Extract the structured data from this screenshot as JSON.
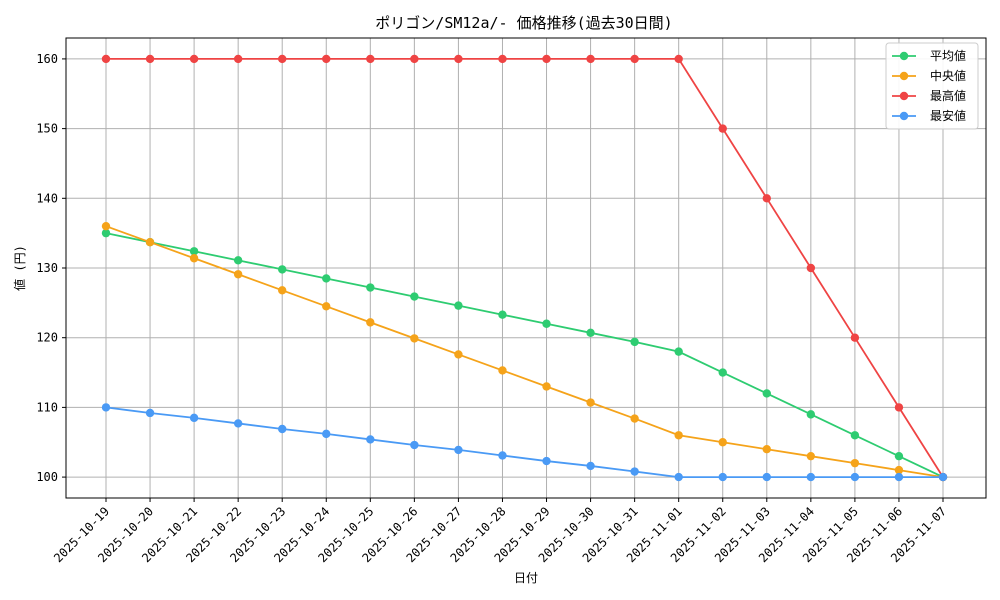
{
  "chart_data": {
    "type": "line",
    "title": "ポリゴン/SM12a/- 価格推移(過去30日間)",
    "xlabel": "日付",
    "ylabel": "値 (円)",
    "ylim": [
      97,
      163
    ],
    "yticks": [
      100,
      110,
      120,
      130,
      140,
      150,
      160
    ],
    "grid": true,
    "legend_position": "top-right",
    "categories": [
      "2025-10-19",
      "2025-10-20",
      "2025-10-21",
      "2025-10-22",
      "2025-10-23",
      "2025-10-24",
      "2025-10-25",
      "2025-10-26",
      "2025-10-27",
      "2025-10-28",
      "2025-10-29",
      "2025-10-30",
      "2025-10-31",
      "2025-11-01",
      "2025-11-02",
      "2025-11-03",
      "2025-11-04",
      "2025-11-05",
      "2025-11-06",
      "2025-11-07"
    ],
    "series": [
      {
        "name": "平均値",
        "color": "#2ecc71",
        "values": [
          135,
          133.7,
          132.4,
          131.1,
          129.8,
          128.5,
          127.2,
          125.9,
          124.6,
          123.3,
          122.0,
          120.7,
          119.4,
          118,
          115,
          112,
          109,
          106,
          103,
          100
        ]
      },
      {
        "name": "中央値",
        "color": "#f5a31a",
        "values": [
          136,
          133.7,
          131.4,
          129.1,
          126.8,
          124.5,
          122.2,
          119.9,
          117.6,
          115.3,
          113.0,
          110.7,
          108.4,
          106,
          105,
          104,
          103,
          102,
          101,
          100
        ]
      },
      {
        "name": "最高値",
        "color": "#ef4444",
        "values": [
          160,
          160,
          160,
          160,
          160,
          160,
          160,
          160,
          160,
          160,
          160,
          160,
          160,
          160,
          150,
          140,
          130,
          120,
          110,
          100
        ]
      },
      {
        "name": "最安値",
        "color": "#4a9af5",
        "values": [
          110,
          109.2,
          108.5,
          107.7,
          106.9,
          106.2,
          105.4,
          104.6,
          103.9,
          103.1,
          102.3,
          101.6,
          100.8,
          100,
          100,
          100,
          100,
          100,
          100,
          100
        ]
      }
    ]
  }
}
